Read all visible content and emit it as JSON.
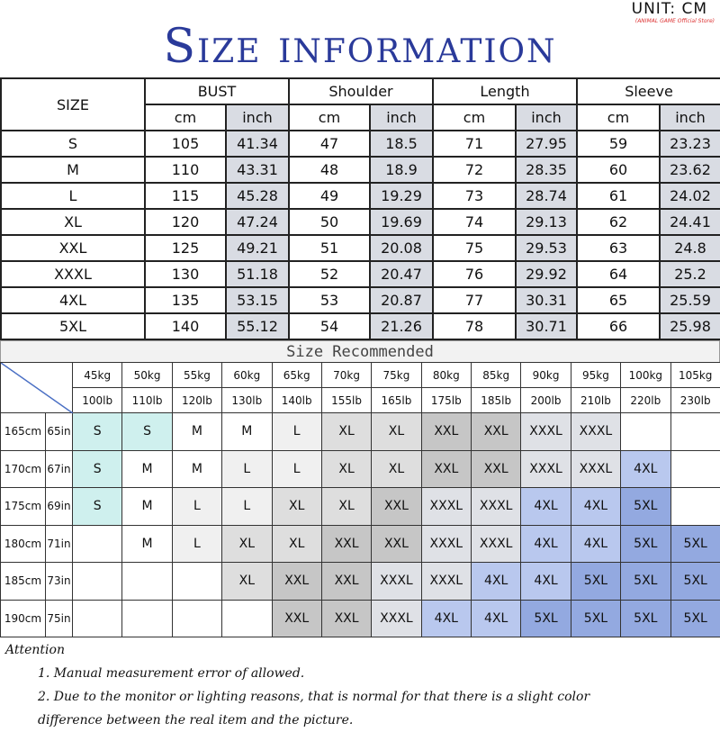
{
  "title": "Size information",
  "unit": "UNIT: CM",
  "store": "(ANIMAL GAME Official Store)",
  "size_table": {
    "size_header": "SIZE",
    "groups": [
      "BUST",
      "Shoulder",
      "Length",
      "Sleeve"
    ],
    "units": [
      "cm",
      "inch"
    ],
    "rows": [
      [
        "S",
        "105",
        "41.34",
        "47",
        "18.5",
        "71",
        "27.95",
        "59",
        "23.23"
      ],
      [
        "M",
        "110",
        "43.31",
        "48",
        "18.9",
        "72",
        "28.35",
        "60",
        "23.62"
      ],
      [
        "L",
        "115",
        "45.28",
        "49",
        "19.29",
        "73",
        "28.74",
        "61",
        "24.02"
      ],
      [
        "XL",
        "120",
        "47.24",
        "50",
        "19.69",
        "74",
        "29.13",
        "62",
        "24.41"
      ],
      [
        "XXL",
        "125",
        "49.21",
        "51",
        "20.08",
        "75",
        "29.53",
        "63",
        "24.8"
      ],
      [
        "XXXL",
        "130",
        "51.18",
        "52",
        "20.47",
        "76",
        "29.92",
        "64",
        "25.2"
      ],
      [
        "4XL",
        "135",
        "53.15",
        "53",
        "20.87",
        "77",
        "30.31",
        "65",
        "25.59"
      ],
      [
        "5XL",
        "140",
        "55.12",
        "54",
        "21.26",
        "78",
        "30.71",
        "66",
        "25.98"
      ]
    ]
  },
  "recommend": {
    "title": "Size Recommended",
    "kg": [
      "45kg",
      "50kg",
      "55kg",
      "60kg",
      "65kg",
      "70kg",
      "75kg",
      "80kg",
      "85kg",
      "90kg",
      "95kg",
      "100kg",
      "105kg"
    ],
    "lb": [
      "100lb",
      "110lb",
      "120lb",
      "130lb",
      "140lb",
      "155lb",
      "165lb",
      "175lb",
      "185lb",
      "200lb",
      "210lb",
      "220lb",
      "230lb"
    ],
    "rows": [
      {
        "cm": "165cm",
        "in": "65in",
        "sizes": [
          "S",
          "S",
          "M",
          "M",
          "L",
          "XL",
          "XL",
          "XXL",
          "XXL",
          "XXXL",
          "XXXL",
          "",
          ""
        ]
      },
      {
        "cm": "170cm",
        "in": "67in",
        "sizes": [
          "S",
          "M",
          "M",
          "L",
          "L",
          "XL",
          "XL",
          "XXL",
          "XXL",
          "XXXL",
          "XXXL",
          "4XL",
          ""
        ]
      },
      {
        "cm": "175cm",
        "in": "69in",
        "sizes": [
          "S",
          "M",
          "L",
          "L",
          "XL",
          "XL",
          "XXL",
          "XXXL",
          "XXXL",
          "4XL",
          "4XL",
          "5XL",
          ""
        ]
      },
      {
        "cm": "180cm",
        "in": "71in",
        "sizes": [
          "",
          "M",
          "L",
          "XL",
          "XL",
          "XXL",
          "XXL",
          "XXXL",
          "XXXL",
          "4XL",
          "4XL",
          "5XL",
          "5XL"
        ]
      },
      {
        "cm": "185cm",
        "in": "73in",
        "sizes": [
          "",
          "",
          "",
          "XL",
          "XXL",
          "XXL",
          "XXXL",
          "XXXL",
          "4XL",
          "4XL",
          "5XL",
          "5XL",
          "5XL"
        ]
      },
      {
        "cm": "190cm",
        "in": "75in",
        "sizes": [
          "",
          "",
          "",
          "",
          "XXL",
          "XXL",
          "XXXL",
          "4XL",
          "4XL",
          "5XL",
          "5XL",
          "5XL",
          "5XL"
        ]
      }
    ],
    "colors": {
      "S": "#cff0ee",
      "M": "#ffffff",
      "L": "#f0f0f0",
      "XL": "#dedede",
      "XXL": "#c6c6c6",
      "XXXL": "#dfe1e6",
      "4XL": "#b9c8ee",
      "5XL": "#93a9e0",
      "": "#ffffff"
    }
  },
  "attention": {
    "title": "Attention",
    "items": [
      "1. Manual measurement error of allowed.",
      "2.  Due to the monitor or lighting reasons, that is normal for that there is a slight color",
      "difference between the real item and the picture."
    ]
  }
}
